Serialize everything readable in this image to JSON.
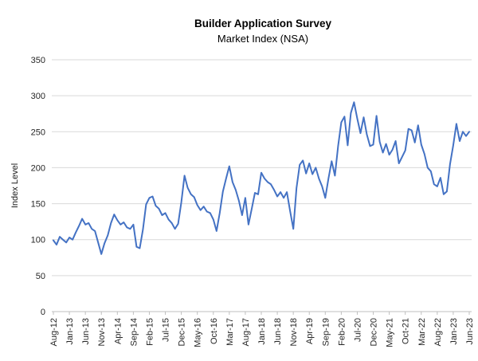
{
  "chart_data": {
    "type": "line",
    "title": "Builder Application Survey",
    "subtitle": "Market Index (NSA)",
    "ylabel": "Index Level",
    "xlabel": "",
    "ylim": [
      0,
      350
    ],
    "y_ticks": [
      0,
      50,
      100,
      150,
      200,
      250,
      300,
      350
    ],
    "x_tick_interval": 5,
    "x_tick_labels": [
      "Aug-12",
      "Jan-13",
      "Jun-13",
      "Nov-13",
      "Apr-14",
      "Sep-14",
      "Feb-15",
      "Jul-15",
      "Dec-15",
      "May-16",
      "Oct-16",
      "Mar-17",
      "Aug-17",
      "Jan-18",
      "Jun-18",
      "Nov-18",
      "Apr-19",
      "Sep-19",
      "Feb-20",
      "Jul-20",
      "Dec-20",
      "May-21",
      "Oct-21",
      "Mar-22",
      "Aug-22",
      "Jan-23",
      "Jun-23"
    ],
    "legend": "none",
    "grid": "horizontal",
    "line_color": "#4472C4",
    "gridline_color": "#D9D9D9",
    "axis_color": "#BFBFBF",
    "text_color": "#262626",
    "x": [
      "Aug-12",
      "Sep-12",
      "Oct-12",
      "Nov-12",
      "Dec-12",
      "Jan-13",
      "Feb-13",
      "Mar-13",
      "Apr-13",
      "May-13",
      "Jun-13",
      "Jul-13",
      "Aug-13",
      "Sep-13",
      "Oct-13",
      "Nov-13",
      "Dec-13",
      "Jan-14",
      "Feb-14",
      "Mar-14",
      "Apr-14",
      "May-14",
      "Jun-14",
      "Jul-14",
      "Aug-14",
      "Sep-14",
      "Oct-14",
      "Nov-14",
      "Dec-14",
      "Jan-15",
      "Feb-15",
      "Mar-15",
      "Apr-15",
      "May-15",
      "Jun-15",
      "Jul-15",
      "Aug-15",
      "Sep-15",
      "Oct-15",
      "Nov-15",
      "Dec-15",
      "Jan-16",
      "Feb-16",
      "Mar-16",
      "Apr-16",
      "May-16",
      "Jun-16",
      "Jul-16",
      "Aug-16",
      "Sep-16",
      "Oct-16",
      "Nov-16",
      "Dec-16",
      "Jan-17",
      "Feb-17",
      "Mar-17",
      "Apr-17",
      "May-17",
      "Jun-17",
      "Jul-17",
      "Aug-17",
      "Sep-17",
      "Oct-17",
      "Nov-17",
      "Dec-17",
      "Jan-18",
      "Feb-18",
      "Mar-18",
      "Apr-18",
      "May-18",
      "Jun-18",
      "Jul-18",
      "Aug-18",
      "Sep-18",
      "Oct-18",
      "Nov-18",
      "Dec-18",
      "Jan-19",
      "Feb-19",
      "Mar-19",
      "Apr-19",
      "May-19",
      "Jun-19",
      "Jul-19",
      "Aug-19",
      "Sep-19",
      "Oct-19",
      "Nov-19",
      "Dec-19",
      "Jan-20",
      "Feb-20",
      "Mar-20",
      "Apr-20",
      "May-20",
      "Jun-20",
      "Jul-20",
      "Aug-20",
      "Sep-20",
      "Oct-20",
      "Nov-20",
      "Dec-20",
      "Jan-21",
      "Feb-21",
      "Mar-21",
      "Apr-21",
      "May-21",
      "Jun-21",
      "Jul-21",
      "Aug-21",
      "Sep-21",
      "Oct-21",
      "Nov-21",
      "Dec-21",
      "Jan-22",
      "Feb-22",
      "Mar-22",
      "Apr-22",
      "May-22",
      "Jun-22",
      "Jul-22",
      "Aug-22",
      "Sep-22",
      "Oct-22",
      "Nov-22",
      "Dec-22",
      "Jan-23",
      "Feb-23",
      "Mar-23",
      "Apr-23",
      "May-23",
      "Jun-23"
    ],
    "values": [
      99,
      93,
      104,
      100,
      96,
      103,
      100,
      110,
      119,
      129,
      121,
      123,
      115,
      112,
      96,
      80,
      95,
      106,
      123,
      135,
      127,
      121,
      124,
      117,
      115,
      121,
      90,
      88,
      114,
      149,
      158,
      160,
      147,
      143,
      134,
      137,
      128,
      123,
      115,
      122,
      152,
      189,
      172,
      163,
      159,
      148,
      141,
      146,
      139,
      137,
      128,
      112,
      137,
      167,
      185,
      202,
      180,
      169,
      154,
      134,
      158,
      121,
      143,
      165,
      163,
      193,
      185,
      180,
      177,
      169,
      160,
      166,
      158,
      166,
      140,
      115,
      172,
      204,
      210,
      192,
      206,
      191,
      200,
      185,
      174,
      158,
      185,
      209,
      189,
      230,
      263,
      271,
      231,
      276,
      291,
      268,
      248,
      270,
      246,
      230,
      232,
      272,
      236,
      221,
      233,
      218,
      225,
      237,
      206,
      215,
      224,
      254,
      252,
      235,
      259,
      232,
      219,
      200,
      195,
      177,
      174,
      186,
      163,
      167,
      205,
      231,
      261,
      237,
      250,
      244,
      250
    ]
  }
}
